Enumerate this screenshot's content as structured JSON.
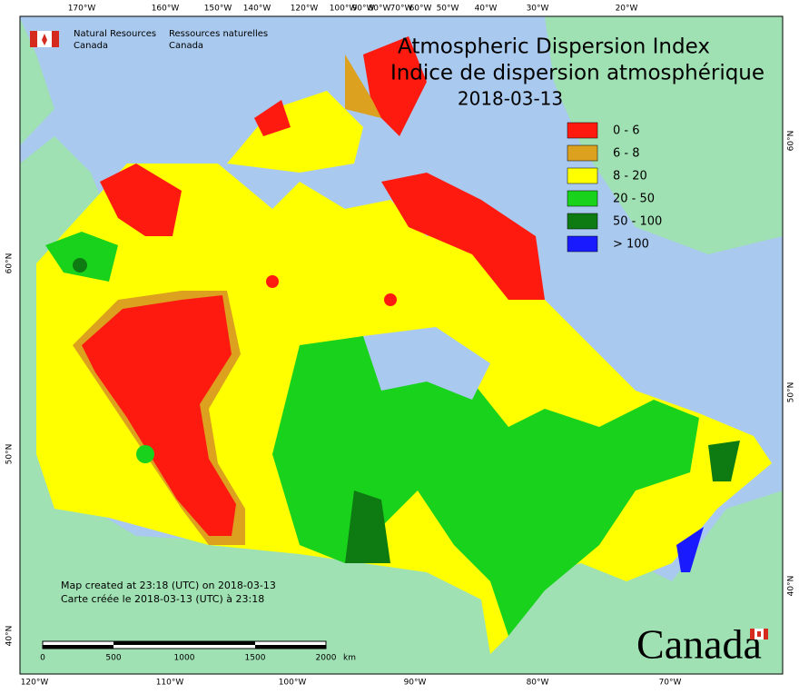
{
  "header": {
    "title_en": "Atmospheric Dispersion Index",
    "title_fr": "Indice de dispersion atmosphérique",
    "date": "2018-03-13"
  },
  "agency": {
    "en_1": "Natural Resources",
    "en_2": "Canada",
    "fr_1": "Ressources naturelles",
    "fr_2": "Canada"
  },
  "legend": {
    "items": [
      {
        "label": "0 - 6",
        "color": "#ff1a10"
      },
      {
        "label": "6 - 8",
        "color": "#dca11f"
      },
      {
        "label": "8 - 20",
        "color": "#ffff00"
      },
      {
        "label": "20 - 50",
        "color": "#19d21c"
      },
      {
        "label": "50 - 100",
        "color": "#0e7a12"
      },
      {
        "label": "> 100",
        "color": "#1a1aff"
      }
    ]
  },
  "graticule": {
    "top": [
      "170°W",
      "160°W",
      "150°W",
      "140°W",
      "120°W",
      "100°W",
      "90°W",
      "80°W",
      "70°W",
      "60°W",
      "50°W",
      "40°W",
      "30°W",
      "20°W"
    ],
    "bottom": [
      "120°W",
      "110°W",
      "100°W",
      "90°W",
      "80°W",
      "70°W"
    ],
    "left": [
      "60°N",
      "50°N",
      "40°N"
    ],
    "right": [
      "60°N",
      "50°N",
      "40°N"
    ]
  },
  "scale": {
    "labels": [
      "0",
      "500",
      "1000",
      "1500",
      "2000",
      "km"
    ]
  },
  "credits": {
    "created_en": "Map created at 23:18 (UTC) on 2018-03-13",
    "created_fr": "Carte créée le 2018-03-13 (UTC) à 23:18"
  },
  "wordmark": "Canada"
}
